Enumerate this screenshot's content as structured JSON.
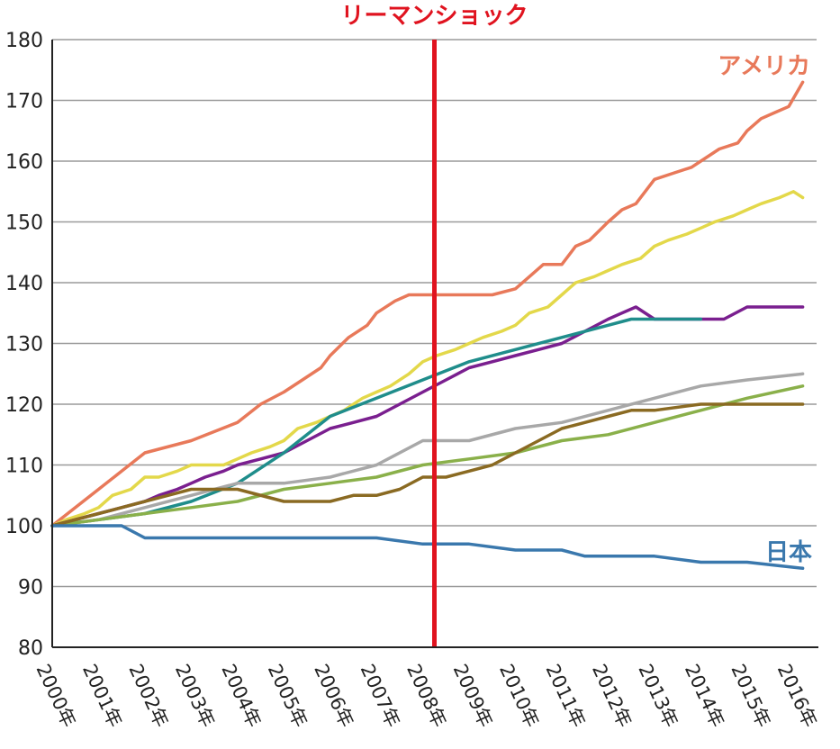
{
  "chart_data": {
    "type": "line",
    "title": "",
    "xlabel": "",
    "ylabel": "",
    "x_tick_labels": [
      "2000年",
      "2001年",
      "2002年",
      "2003年",
      "2004年",
      "2005年",
      "2006年",
      "2007年",
      "2008年",
      "2009年",
      "2010年",
      "2011年",
      "2012年",
      "2013年",
      "2014年",
      "2015年",
      "2016年"
    ],
    "ylim": [
      80,
      180
    ],
    "y_ticks": [
      80,
      90,
      100,
      110,
      120,
      130,
      140,
      150,
      160,
      170,
      180
    ],
    "xlim": [
      2000,
      2016.5
    ],
    "grid": true,
    "event": {
      "label": "リーマンショック",
      "x": 2008.25,
      "color": "#e0131f"
    },
    "series": [
      {
        "name": "アメリカ",
        "color": "#e8795a",
        "label_color": "#e8795a",
        "x": [
          2000,
          2000.5,
          2001,
          2001.5,
          2002,
          2003,
          2004,
          2004.5,
          2005,
          2005.4,
          2005.8,
          2006,
          2006.4,
          2006.8,
          2007,
          2007.4,
          2007.7,
          2008,
          2008.3,
          2008.5,
          2009,
          2009.5,
          2010,
          2010.3,
          2010.6,
          2011,
          2011.3,
          2011.6,
          2012,
          2012.3,
          2012.6,
          2013,
          2013.4,
          2013.8,
          2014,
          2014.4,
          2014.8,
          2015,
          2015.3,
          2015.6,
          2015.9,
          2016.2
        ],
        "y": [
          100,
          103,
          106,
          109,
          112,
          114,
          117,
          120,
          122,
          124,
          126,
          128,
          131,
          133,
          135,
          137,
          138,
          138,
          138,
          138,
          138,
          138,
          139,
          141,
          143,
          143,
          146,
          147,
          150,
          152,
          153,
          157,
          158,
          159,
          160,
          162,
          163,
          165,
          167,
          168,
          169,
          173
        ]
      },
      {
        "name": "",
        "color": "#e3d84a",
        "x": [
          2000,
          2000.3,
          2000.7,
          2001,
          2001.3,
          2001.7,
          2002,
          2002.3,
          2002.7,
          2003,
          2003.3,
          2003.7,
          2004,
          2004.3,
          2004.7,
          2005,
          2005.3,
          2005.7,
          2006,
          2006.3,
          2006.7,
          2007,
          2007.3,
          2007.7,
          2008,
          2008.3,
          2008.7,
          2009,
          2009.3,
          2009.7,
          2010,
          2010.3,
          2010.7,
          2011,
          2011.3,
          2011.7,
          2012,
          2012.3,
          2012.7,
          2013,
          2013.3,
          2013.7,
          2014,
          2014.3,
          2014.7,
          2015,
          2015.3,
          2015.7,
          2016,
          2016.2
        ],
        "y": [
          100,
          101,
          102,
          103,
          105,
          106,
          108,
          108,
          109,
          110,
          110,
          110,
          111,
          112,
          113,
          114,
          116,
          117,
          118,
          119,
          121,
          122,
          123,
          125,
          127,
          128,
          129,
          130,
          131,
          132,
          133,
          135,
          136,
          138,
          140,
          141,
          142,
          143,
          144,
          146,
          147,
          148,
          149,
          150,
          151,
          152,
          153,
          154,
          155,
          154
        ]
      },
      {
        "name": "",
        "color": "#7a1f8f",
        "x": [
          2000,
          2001,
          2002,
          2002.3,
          2002.7,
          2003,
          2003.3,
          2003.7,
          2004,
          2004.5,
          2005,
          2005.5,
          2006,
          2006.5,
          2007,
          2007.5,
          2008,
          2008.5,
          2009,
          2009.5,
          2010,
          2010.5,
          2011,
          2011.5,
          2012,
          2012.3,
          2012.6,
          2013,
          2013.5,
          2014,
          2014.5,
          2015,
          2015.5,
          2016.2
        ],
        "y": [
          100,
          102,
          104,
          105,
          106,
          107,
          108,
          109,
          110,
          111,
          112,
          114,
          116,
          117,
          118,
          120,
          122,
          124,
          126,
          127,
          128,
          129,
          130,
          132,
          134,
          135,
          136,
          134,
          134,
          134,
          134,
          136,
          136,
          136
        ]
      },
      {
        "name": "",
        "color": "#1f8d8b",
        "x": [
          2000,
          2001,
          2002,
          2003,
          2004,
          2005,
          2006,
          2007,
          2008,
          2009,
          2010,
          2011,
          2012,
          2012.5,
          2013,
          2013.5,
          2014
        ],
        "y": [
          100,
          101,
          102,
          104,
          107,
          112,
          118,
          121,
          124,
          127,
          129,
          131,
          133,
          134,
          134,
          134,
          134
        ]
      },
      {
        "name": "",
        "color": "#a8a8a8",
        "x": [
          2000,
          2001,
          2002,
          2003,
          2004,
          2005,
          2006,
          2007,
          2008,
          2009,
          2010,
          2011,
          2012,
          2013,
          2014,
          2015,
          2016.2
        ],
        "y": [
          100,
          101,
          103,
          105,
          107,
          107,
          108,
          110,
          114,
          114,
          116,
          117,
          119,
          121,
          123,
          124,
          125
        ]
      },
      {
        "name": "",
        "color": "#8ab04a",
        "x": [
          2000,
          2001,
          2002,
          2003,
          2004,
          2005,
          2006,
          2007,
          2008,
          2009,
          2010,
          2011,
          2012,
          2013,
          2014,
          2015,
          2016.2
        ],
        "y": [
          100,
          101,
          102,
          103,
          104,
          106,
          107,
          108,
          110,
          111,
          112,
          114,
          115,
          117,
          119,
          121,
          123
        ]
      },
      {
        "name": "",
        "color": "#8a6a22",
        "x": [
          2000,
          2001,
          2002,
          2002.5,
          2003,
          2003.5,
          2004,
          2005,
          2006,
          2006.5,
          2007,
          2007.5,
          2008,
          2008.5,
          2009,
          2009.5,
          2010,
          2010.5,
          2011,
          2011.5,
          2012,
          2012.5,
          2013,
          2014,
          2015,
          2016.2
        ],
        "y": [
          100,
          102,
          104,
          105,
          106,
          106,
          106,
          104,
          104,
          105,
          105,
          106,
          108,
          108,
          109,
          110,
          112,
          114,
          116,
          117,
          118,
          119,
          119,
          120,
          120,
          120
        ]
      },
      {
        "name": "日本",
        "color": "#3a78ad",
        "label_color": "#3a78ad",
        "x": [
          2000,
          2001,
          2001.5,
          2002,
          2003,
          2004,
          2005,
          2006,
          2007,
          2008,
          2009,
          2010,
          2011,
          2011.5,
          2012,
          2013,
          2014,
          2015,
          2016.2
        ],
        "y": [
          100,
          100,
          100,
          98,
          98,
          98,
          98,
          98,
          98,
          97,
          97,
          96,
          96,
          95,
          95,
          95,
          94,
          94,
          93
        ]
      }
    ]
  }
}
